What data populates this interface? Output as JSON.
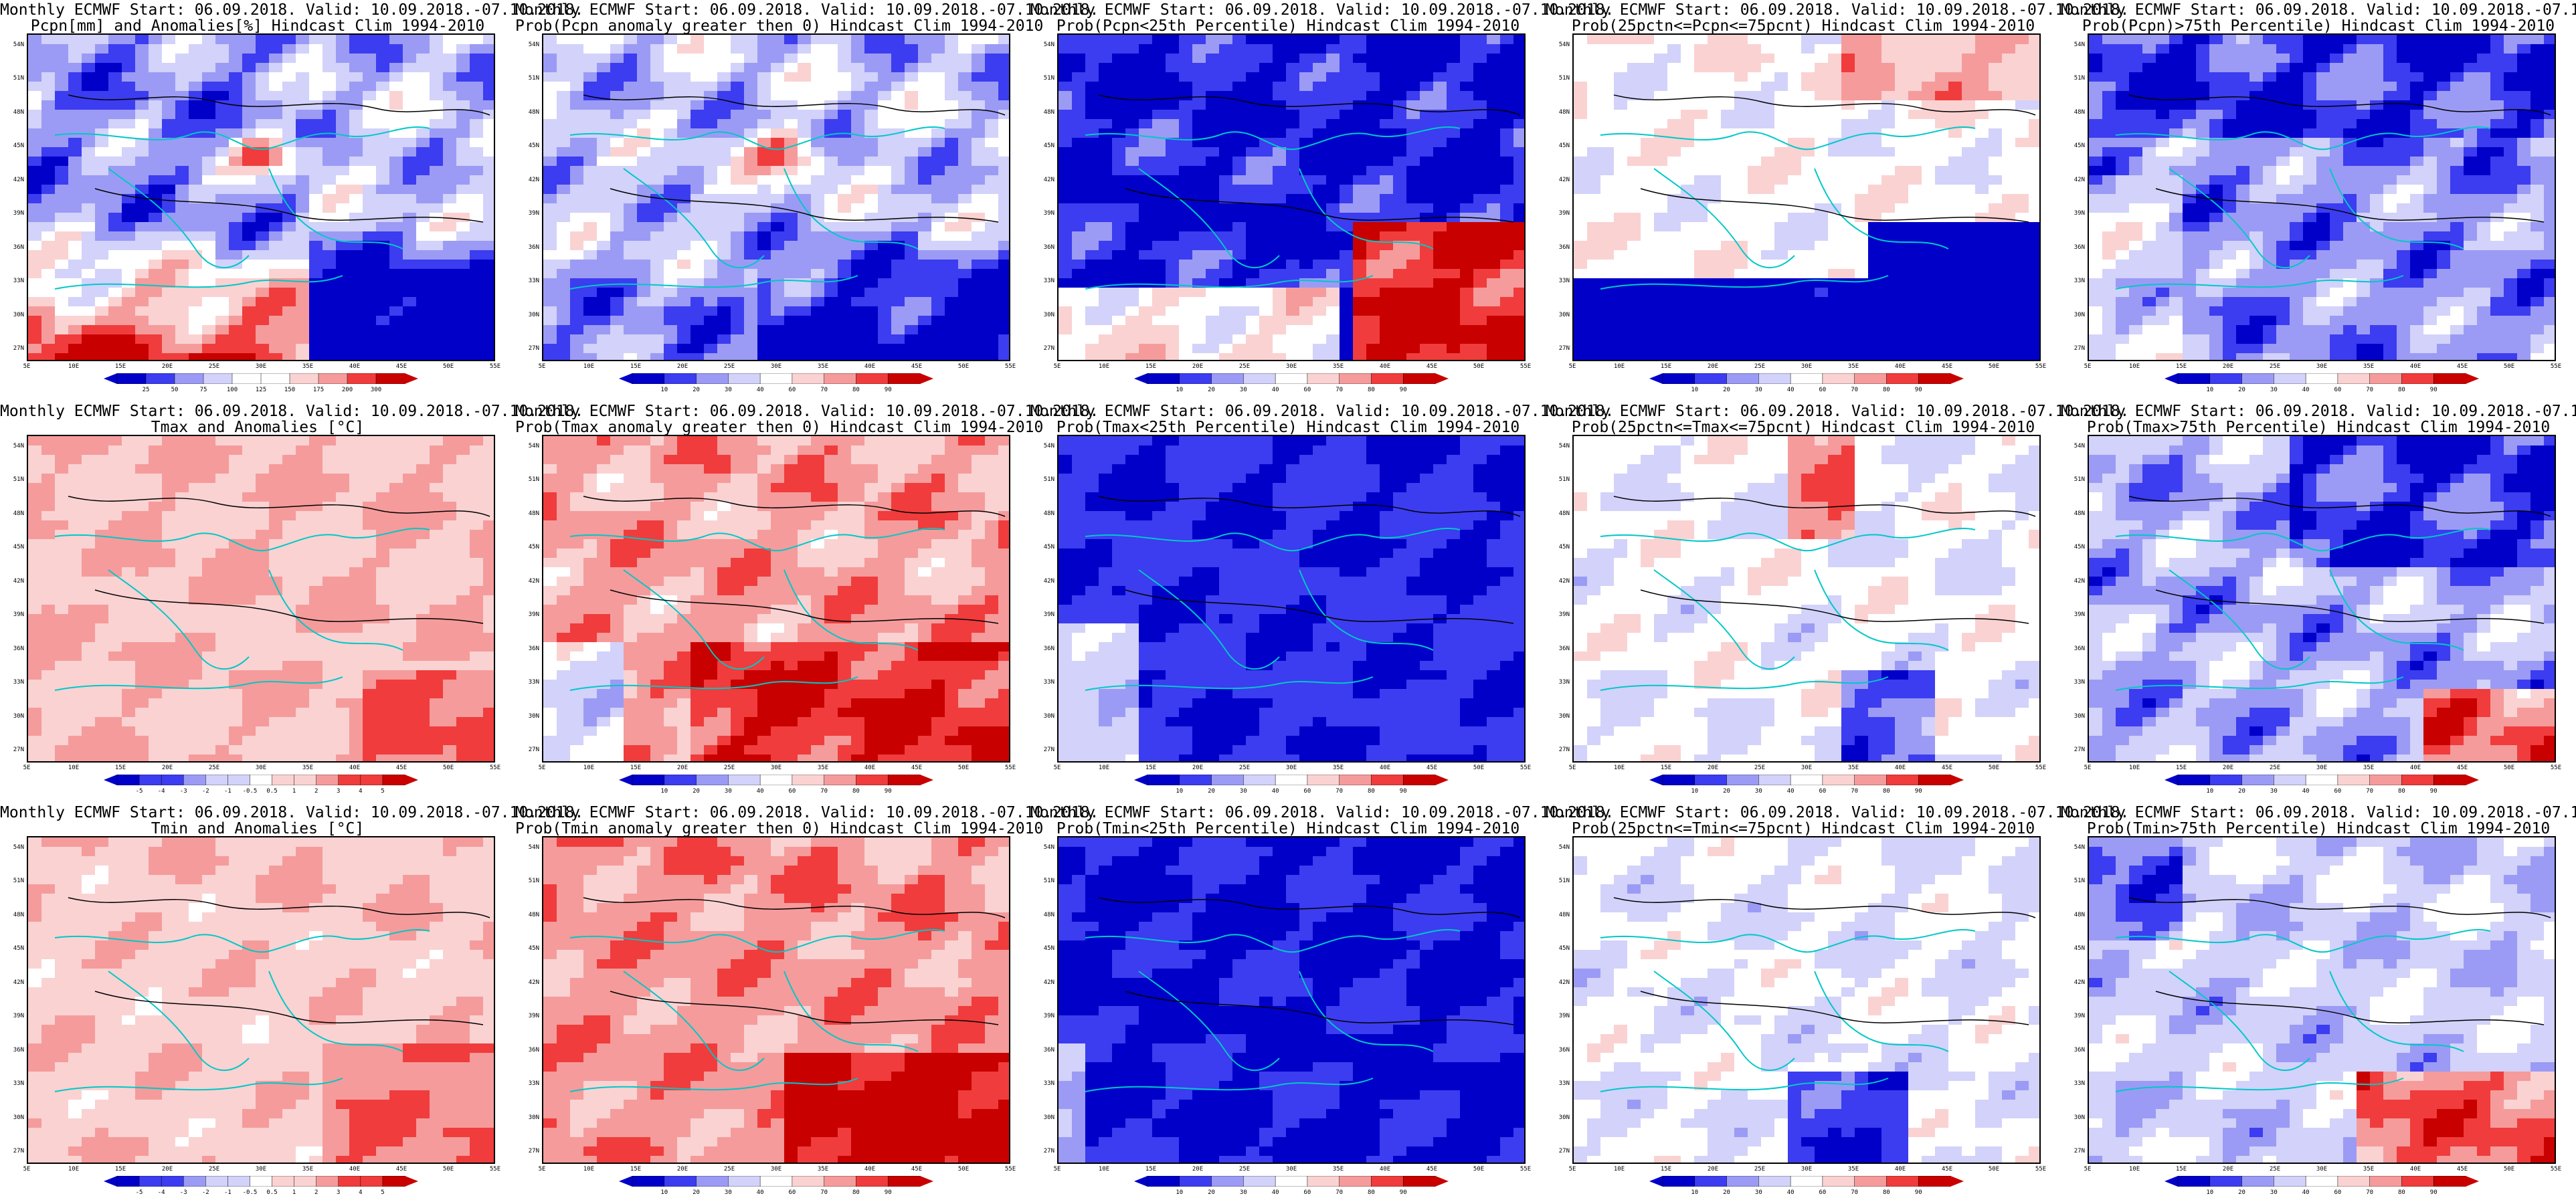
{
  "header_line": "Monthly ECMWF Start: 06.09.2018. Valid: 10.09.2018.-07.10.2018.",
  "lat_labels": [
    "54N",
    "51N",
    "48N",
    "45N",
    "42N",
    "39N",
    "36N",
    "33N",
    "30N",
    "27N"
  ],
  "lon_labels": [
    "5E",
    "10E",
    "15E",
    "20E",
    "25E",
    "30E",
    "35E",
    "40E",
    "45E",
    "50E",
    "55E"
  ],
  "colors": {
    "blue_dark": "#0000c8",
    "blue_mid": "#3c3cf0",
    "blue_light": "#9b9bf5",
    "blue_pale": "#d2d2fa",
    "red_pale": "#fad2d2",
    "red_light": "#f59b9b",
    "red_mid": "#f03c3c",
    "red_dark": "#c80000",
    "coast": "#00c8c8",
    "contour": "#000000"
  },
  "chart_data": [
    {
      "type": "heatmap",
      "title": "Pcpn[mm] and Anomalies[%] Hindcast Clim 1994-2010",
      "colorbar_ticks": [
        "25",
        "50",
        "75",
        "100",
        "125",
        "150",
        "175",
        "200",
        "300"
      ],
      "pattern": "pcpn_anom"
    },
    {
      "type": "heatmap",
      "title": "Prob(Pcpn anomaly greater then 0) Hindcast Clim 1994-2010",
      "colorbar_ticks": [
        "10",
        "20",
        "30",
        "40",
        "60",
        "70",
        "80",
        "90"
      ],
      "pattern": "pcpn_pos"
    },
    {
      "type": "heatmap",
      "title": "Prob(Pcpn<25th Percentile) Hindcast Clim 1994-2010",
      "colorbar_ticks": [
        "10",
        "20",
        "30",
        "40",
        "60",
        "70",
        "80",
        "90"
      ],
      "pattern": "pcpn_lo"
    },
    {
      "type": "heatmap",
      "title": "Prob(25pctn<=Pcpn<=75pcnt) Hindcast Clim 1994-2010",
      "colorbar_ticks": [
        "10",
        "20",
        "30",
        "40",
        "60",
        "70",
        "80",
        "90"
      ],
      "pattern": "pcpn_mid"
    },
    {
      "type": "heatmap",
      "title": "Prob(Pcpn)>75th Percentile) Hindcast Clim 1994-2010",
      "colorbar_ticks": [
        "10",
        "20",
        "30",
        "40",
        "60",
        "70",
        "80",
        "90"
      ],
      "pattern": "pcpn_hi"
    },
    {
      "type": "heatmap",
      "title": "Tmax and Anomalies [°C]",
      "colorbar_ticks": [
        "-5",
        "-4",
        "-3",
        "-2",
        "-1",
        "-0.5",
        "0.5",
        "1",
        "2",
        "3",
        "4",
        "5"
      ],
      "pattern": "t_anom"
    },
    {
      "type": "heatmap",
      "title": "Prob(Tmax anomaly greater then 0) Hindcast Clim 1994-2010",
      "colorbar_ticks": [
        "10",
        "20",
        "30",
        "40",
        "60",
        "70",
        "80",
        "90"
      ],
      "pattern": "t_pos"
    },
    {
      "type": "heatmap",
      "title": "Prob(Tmax<25th Percentile) Hindcast Clim 1994-2010",
      "colorbar_ticks": [
        "10",
        "20",
        "30",
        "40",
        "60",
        "70",
        "80",
        "90"
      ],
      "pattern": "t_lo"
    },
    {
      "type": "heatmap",
      "title": "Prob(25pctn<=Tmax<=75pcnt) Hindcast Clim 1994-2010",
      "colorbar_ticks": [
        "10",
        "20",
        "30",
        "40",
        "60",
        "70",
        "80",
        "90"
      ],
      "pattern": "t_mid"
    },
    {
      "type": "heatmap",
      "title": "Prob(Tmax>75th Percentile) Hindcast Clim 1994-2010",
      "colorbar_ticks": [
        "10",
        "20",
        "30",
        "40",
        "60",
        "70",
        "80",
        "90"
      ],
      "pattern": "t_hi"
    },
    {
      "type": "heatmap",
      "title": "Tmin and Anomalies [°C]",
      "colorbar_ticks": [
        "-5",
        "-4",
        "-3",
        "-2",
        "-1",
        "-0.5",
        "0.5",
        "1",
        "2",
        "3",
        "4",
        "5"
      ],
      "pattern": "tmin_anom"
    },
    {
      "type": "heatmap",
      "title": "Prob(Tmin anomaly greater then 0) Hindcast Clim 1994-2010",
      "colorbar_ticks": [
        "10",
        "20",
        "30",
        "40",
        "60",
        "70",
        "80",
        "90"
      ],
      "pattern": "tmin_pos"
    },
    {
      "type": "heatmap",
      "title": "Prob(Tmin<25th Percentile) Hindcast Clim 1994-2010",
      "colorbar_ticks": [
        "10",
        "20",
        "30",
        "40",
        "60",
        "70",
        "80",
        "90"
      ],
      "pattern": "tmin_lo"
    },
    {
      "type": "heatmap",
      "title": "Prob(25pctn<=Tmin<=75pcnt) Hindcast Clim 1994-2010",
      "colorbar_ticks": [
        "10",
        "20",
        "30",
        "40",
        "60",
        "70",
        "80",
        "90"
      ],
      "pattern": "tmin_mid"
    },
    {
      "type": "heatmap",
      "title": "Prob(Tmin>75th Percentile) Hindcast Clim 1994-2010",
      "colorbar_ticks": [
        "10",
        "20",
        "30",
        "40",
        "60",
        "70",
        "80",
        "90"
      ],
      "pattern": "tmin_hi"
    }
  ]
}
